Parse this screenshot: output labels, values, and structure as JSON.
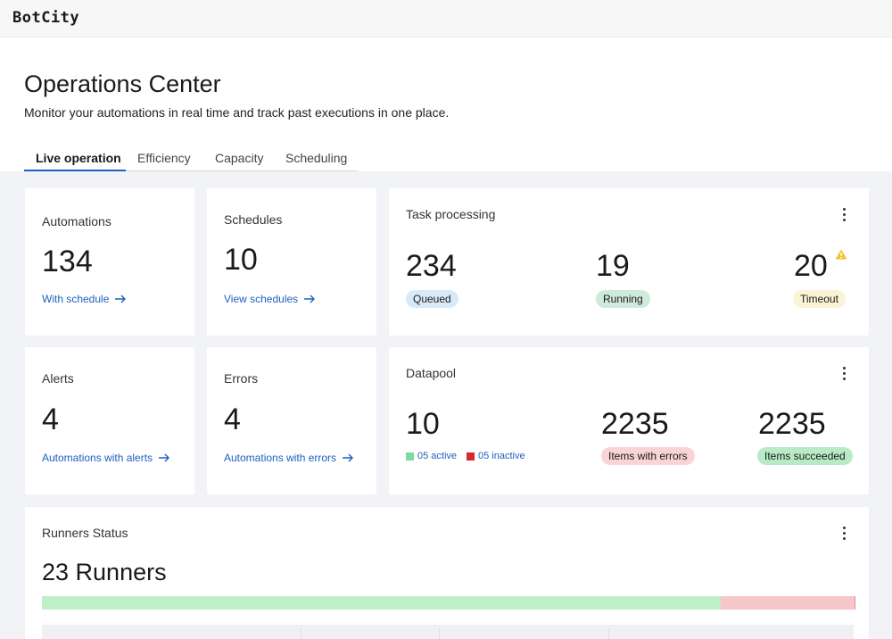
{
  "app": {
    "logo": "BotCity"
  },
  "page": {
    "title": "Operations Center",
    "subtitle": "Monitor your automations in real time and track past executions in one place."
  },
  "tabs": [
    {
      "label": "Live operation",
      "active": true
    },
    {
      "label": "Efficiency",
      "active": false
    },
    {
      "label": "Capacity",
      "active": false
    },
    {
      "label": "Scheduling",
      "active": false
    }
  ],
  "cards": {
    "automations": {
      "title": "Automations",
      "value": "134",
      "link": "With schedule"
    },
    "schedules": {
      "title": "Schedules",
      "value": "10",
      "link": "View schedules"
    },
    "alerts": {
      "title": "Alerts",
      "value": "4",
      "link": "Automations with alerts"
    },
    "errors": {
      "title": "Errors",
      "value": "4",
      "link": "Automations with errors"
    },
    "task_processing": {
      "title": "Task processing",
      "queued": {
        "value": "234",
        "label": "Queued"
      },
      "running": {
        "value": "19",
        "label": "Running"
      },
      "timeout": {
        "value": "20",
        "label": "Timeout",
        "warning_icon": "warning-icon"
      }
    },
    "datapool": {
      "title": "Datapool",
      "count": "10",
      "active_label": "05 active",
      "inactive_label": "05 inactive",
      "items_errors": {
        "value": "2235",
        "label": "Items with errors"
      },
      "items_succeeded": {
        "value": "2235",
        "label": "Items succeeded"
      }
    },
    "runners": {
      "title": "Runners Status",
      "value": "23 Runners",
      "healthy_fraction": 0.834,
      "error_fraction": 0.166
    }
  },
  "colors": {
    "accent": "#1f5fbf",
    "active_green": "#7ed99a",
    "inactive_red": "#d62b2b",
    "bar_ok": "#bfefc9",
    "bar_err": "#f6c6c8",
    "warning": "#f2c230"
  }
}
